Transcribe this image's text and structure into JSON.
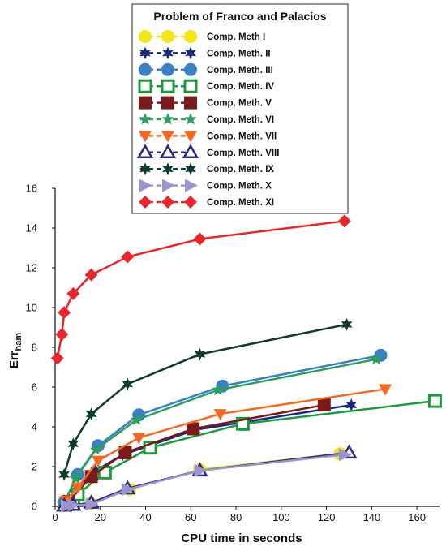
{
  "chart_data": {
    "type": "line",
    "title": "",
    "xlabel": "CPU time in seconds",
    "ylabel": "Errham",
    "ylabel_main": "Err",
    "ylabel_sub": "ham",
    "xlim": [
      0,
      170
    ],
    "ylim": [
      0,
      16
    ],
    "xticks": [
      "0",
      "20",
      "40",
      "60",
      "80",
      "100",
      "120",
      "140",
      "160"
    ],
    "yticks": [
      "0",
      "2",
      "4",
      "6",
      "8",
      "10",
      "12",
      "14",
      "16"
    ],
    "grid": false,
    "legend": {
      "title": "Problem of Franco and Palacios",
      "placement": "top-center"
    },
    "series": [
      {
        "name": "Comp. Meth I",
        "color": "#f2e51b",
        "marker": "circle",
        "x": [
          4,
          8,
          16,
          33,
          64,
          126
        ],
        "y": [
          0.05,
          0.08,
          0.15,
          0.85,
          1.85,
          2.65
        ]
      },
      {
        "name": "Comp. Meth. II",
        "color": "#1a2a78",
        "marker": "star6",
        "x": [
          6,
          10,
          18,
          30,
          62,
          131
        ],
        "y": [
          0.4,
          0.9,
          1.8,
          2.6,
          3.85,
          5.1
        ]
      },
      {
        "name": "Comp. Meth. III",
        "color": "#3b7fc4",
        "marker": "circle",
        "x": [
          4,
          10,
          19,
          37,
          74,
          144
        ],
        "y": [
          0.2,
          1.6,
          3.05,
          4.6,
          6.05,
          7.6
        ]
      },
      {
        "name": "Comp. Meth. IV",
        "color": "#1d9a3e",
        "marker": "square-open",
        "x": [
          8,
          10,
          22,
          42,
          83,
          168
        ],
        "y": [
          0.2,
          0.6,
          1.7,
          2.95,
          4.15,
          5.3
        ]
      },
      {
        "name": "Comp. Meth. V",
        "color": "#7a1a1a",
        "marker": "square",
        "x": [
          6,
          16,
          31,
          61,
          119
        ],
        "y": [
          0.25,
          1.5,
          2.7,
          3.9,
          5.1
        ]
      },
      {
        "name": "Comp. Meth. VI",
        "color": "#2e9e5e",
        "marker": "star5",
        "x": [
          4,
          9,
          18,
          36,
          72,
          142
        ],
        "y": [
          0.15,
          1.4,
          2.85,
          4.35,
          5.85,
          7.4
        ]
      },
      {
        "name": "Comp. Meth. VII",
        "color": "#f26a21",
        "marker": "triangle-down",
        "x": [
          5,
          10,
          19,
          37,
          73,
          146
        ],
        "y": [
          0.3,
          0.95,
          2.3,
          3.45,
          4.65,
          5.9
        ]
      },
      {
        "name": "Comp. Meth. VIII",
        "color": "#2a2a7a",
        "marker": "triangle-open",
        "x": [
          4,
          8,
          16,
          32,
          64,
          130
        ],
        "y": [
          0.03,
          0.07,
          0.18,
          0.9,
          1.8,
          2.7
        ]
      },
      {
        "name": "Comp. Meth. IX",
        "color": "#0f3a32",
        "marker": "star6",
        "x": [
          4,
          8,
          16,
          32,
          64,
          129
        ],
        "y": [
          1.6,
          3.15,
          4.65,
          6.15,
          7.65,
          9.15
        ]
      },
      {
        "name": "Comp. Meth. X",
        "color": "#9a95cf",
        "marker": "triangle-right",
        "x": [
          5,
          8,
          16,
          32,
          64,
          128
        ],
        "y": [
          0.03,
          0.06,
          0.1,
          0.85,
          1.8,
          2.6
        ]
      },
      {
        "name": "Comp. Meth. XI",
        "color": "#e8262d",
        "marker": "diamond",
        "x": [
          1,
          3,
          4,
          8,
          16,
          32,
          64,
          128
        ],
        "y": [
          7.45,
          8.65,
          9.75,
          10.7,
          11.65,
          12.55,
          13.45,
          14.35
        ]
      }
    ]
  }
}
